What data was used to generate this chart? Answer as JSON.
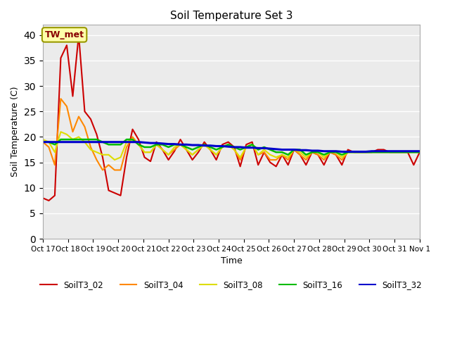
{
  "title": "Soil Temperature Set 3",
  "xlabel": "Time",
  "ylabel": "Soil Temperature (C)",
  "ylim": [
    0,
    42
  ],
  "yticks": [
    0,
    5,
    10,
    15,
    20,
    25,
    30,
    35,
    40
  ],
  "x_labels": [
    "Oct 17",
    "Oct 18",
    "Oct 19",
    "Oct 20",
    "Oct 21",
    "Oct 22",
    "Oct 23",
    "Oct 24",
    "Oct 25",
    "Oct 26",
    "Oct 27",
    "Oct 28",
    "Oct 29",
    "Oct 30",
    "Oct 31",
    "Nov 1"
  ],
  "annotation_text": "TW_met",
  "background_color": "#ebebeb",
  "grid_color": "#ffffff",
  "colors": {
    "SoilT3_02": "#cc0000",
    "SoilT3_04": "#ff8800",
    "SoilT3_08": "#dddd00",
    "SoilT3_16": "#00bb00",
    "SoilT3_32": "#0000cc"
  },
  "SoilT3_02": [
    8.0,
    7.5,
    8.5,
    35.5,
    38.0,
    28.0,
    40.0,
    25.0,
    23.5,
    20.5,
    16.0,
    9.5,
    9.0,
    8.5,
    16.0,
    21.5,
    19.5,
    16.0,
    15.2,
    19.0,
    17.5,
    15.5,
    17.2,
    19.5,
    17.5,
    15.5,
    17.0,
    19.0,
    17.5,
    15.5,
    18.5,
    19.0,
    18.0,
    14.2,
    18.5,
    19.0,
    14.5,
    17.0,
    15.0,
    14.2,
    16.5,
    14.5,
    17.5,
    16.5,
    14.5,
    17.0,
    16.5,
    14.5,
    17.0,
    16.5,
    14.5,
    17.5,
    17.0,
    17.0,
    17.0,
    17.0,
    17.5,
    17.5,
    17.0,
    17.0,
    17.0,
    17.0,
    14.5,
    17.0
  ],
  "SoilT3_04": [
    19.0,
    18.0,
    14.5,
    27.5,
    26.0,
    21.0,
    24.0,
    22.0,
    18.0,
    15.5,
    13.5,
    14.5,
    13.5,
    13.5,
    18.0,
    20.0,
    18.5,
    17.0,
    17.0,
    18.5,
    17.5,
    16.5,
    17.5,
    18.5,
    17.5,
    16.5,
    17.5,
    18.5,
    17.5,
    16.5,
    18.0,
    18.5,
    17.5,
    15.5,
    18.0,
    18.5,
    16.5,
    17.0,
    15.5,
    15.5,
    16.5,
    15.5,
    17.5,
    16.5,
    15.5,
    17.0,
    16.5,
    15.5,
    17.0,
    16.5,
    15.5,
    17.0,
    17.0,
    17.0,
    17.0,
    17.0,
    17.0,
    17.0,
    17.0,
    17.0,
    17.0,
    17.0,
    17.0,
    17.0
  ],
  "SoilT3_08": [
    19.5,
    19.0,
    17.0,
    21.0,
    20.5,
    19.5,
    20.0,
    19.0,
    17.5,
    17.0,
    16.5,
    16.5,
    15.5,
    16.0,
    19.0,
    19.5,
    18.5,
    17.0,
    17.0,
    18.5,
    17.5,
    16.5,
    18.0,
    18.5,
    17.5,
    16.5,
    17.5,
    18.5,
    17.5,
    16.5,
    18.0,
    18.5,
    17.5,
    16.0,
    18.0,
    18.5,
    16.5,
    17.5,
    16.5,
    16.0,
    16.5,
    16.0,
    17.5,
    17.0,
    16.0,
    17.0,
    17.0,
    16.0,
    17.0,
    17.0,
    16.0,
    17.0,
    17.0,
    17.0,
    17.0,
    17.0,
    17.0,
    17.0,
    17.0,
    17.0,
    17.0,
    17.0,
    17.0,
    17.0
  ],
  "SoilT3_16": [
    19.0,
    19.0,
    18.5,
    19.5,
    19.5,
    19.5,
    19.5,
    19.5,
    19.5,
    19.5,
    19.0,
    18.5,
    18.5,
    18.5,
    19.5,
    19.5,
    18.5,
    18.0,
    18.0,
    18.5,
    18.5,
    18.0,
    18.5,
    18.5,
    18.0,
    17.5,
    18.0,
    18.5,
    18.0,
    17.5,
    18.0,
    18.5,
    18.0,
    17.5,
    18.0,
    18.5,
    17.5,
    18.0,
    17.5,
    17.0,
    17.0,
    16.5,
    17.5,
    17.5,
    16.5,
    17.0,
    17.0,
    16.5,
    17.0,
    17.0,
    16.5,
    17.0,
    17.0,
    17.0,
    17.0,
    17.0,
    17.0,
    17.0,
    17.0,
    17.0,
    17.0,
    17.0,
    17.0,
    17.0
  ],
  "SoilT3_32": [
    19.0,
    19.0,
    19.0,
    19.0,
    19.0,
    19.0,
    19.0,
    19.0,
    19.0,
    19.0,
    19.0,
    19.0,
    19.0,
    19.0,
    19.0,
    19.0,
    19.0,
    18.9,
    18.8,
    18.8,
    18.7,
    18.6,
    18.6,
    18.5,
    18.5,
    18.4,
    18.4,
    18.3,
    18.3,
    18.2,
    18.2,
    18.1,
    18.0,
    18.0,
    17.9,
    17.9,
    17.8,
    17.8,
    17.7,
    17.6,
    17.5,
    17.5,
    17.5,
    17.4,
    17.4,
    17.3,
    17.3,
    17.2,
    17.2,
    17.2,
    17.1,
    17.1,
    17.1,
    17.1,
    17.1,
    17.2,
    17.2,
    17.2,
    17.2,
    17.2,
    17.2,
    17.2,
    17.2,
    17.2
  ]
}
